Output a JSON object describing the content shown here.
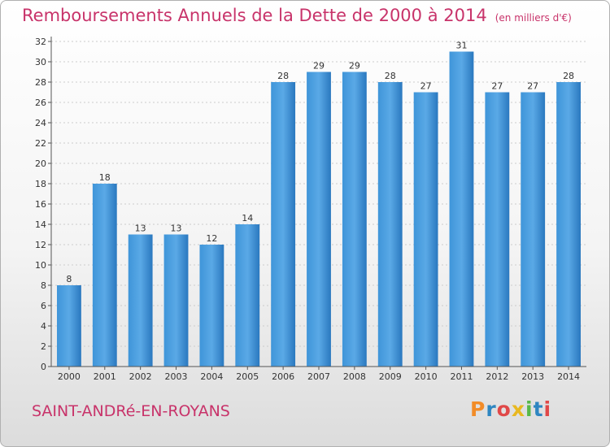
{
  "header": {
    "title": "Remboursements Annuels de la Dette de 2000 à 2014",
    "unit": "(en milliers d'€)"
  },
  "footer": {
    "commune": "SAINT-ANDRé-EN-ROYANS",
    "logo": "Proxiti",
    "logo_colors": [
      "#f28c28",
      "#2e86c1",
      "#e04848",
      "#e8b820",
      "#58b848",
      "#2e86c1",
      "#e04848"
    ]
  },
  "colors": {
    "bar": "#3f95d9",
    "bar_dark": "#2a78bf",
    "axis_text": "#333333",
    "grid": "#cccccc"
  },
  "chart_data": {
    "type": "bar",
    "title": "Remboursements Annuels de la Dette de 2000 à 2014",
    "subtitle": "(en milliers d'€)",
    "xlabel": "",
    "ylabel": "",
    "categories": [
      "2000",
      "2001",
      "2002",
      "2003",
      "2004",
      "2005",
      "2006",
      "2007",
      "2008",
      "2009",
      "2010",
      "2011",
      "2012",
      "2013",
      "2014"
    ],
    "values": [
      8,
      18,
      13,
      13,
      12,
      14,
      28,
      29,
      29,
      28,
      27,
      31,
      27,
      27,
      28
    ],
    "ylim": [
      0,
      32
    ],
    "yticks": [
      0,
      2,
      4,
      6,
      8,
      10,
      12,
      14,
      16,
      18,
      20,
      22,
      24,
      26,
      28,
      30,
      32
    ],
    "grid": true,
    "data_labels": true
  }
}
